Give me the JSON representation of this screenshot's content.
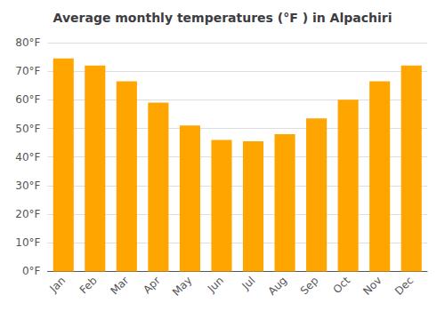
{
  "chart_data": {
    "type": "bar",
    "title": "Average monthly temperatures (°F ) in Alpachiri",
    "categories": [
      "Jan",
      "Feb",
      "Mar",
      "Apr",
      "May",
      "Jun",
      "Jul",
      "Aug",
      "Sep",
      "Oct",
      "Nov",
      "Dec"
    ],
    "values": [
      74.5,
      72.0,
      66.5,
      59.0,
      51.0,
      46.0,
      45.5,
      48.0,
      53.5,
      60.0,
      66.5,
      72.0
    ],
    "color": "#FFA500",
    "ylim": [
      0,
      80
    ],
    "yticks": [
      {
        "value": 0,
        "label": "0°F"
      },
      {
        "value": 10,
        "label": "10°F"
      },
      {
        "value": 20,
        "label": "20°F"
      },
      {
        "value": 30,
        "label": "30°F"
      },
      {
        "value": 40,
        "label": "40°F"
      },
      {
        "value": 50,
        "label": "50°F"
      },
      {
        "value": 60,
        "label": "60°F"
      },
      {
        "value": 70,
        "label": "70°F"
      },
      {
        "value": 80,
        "label": "80°F"
      }
    ],
    "grid": true
  }
}
